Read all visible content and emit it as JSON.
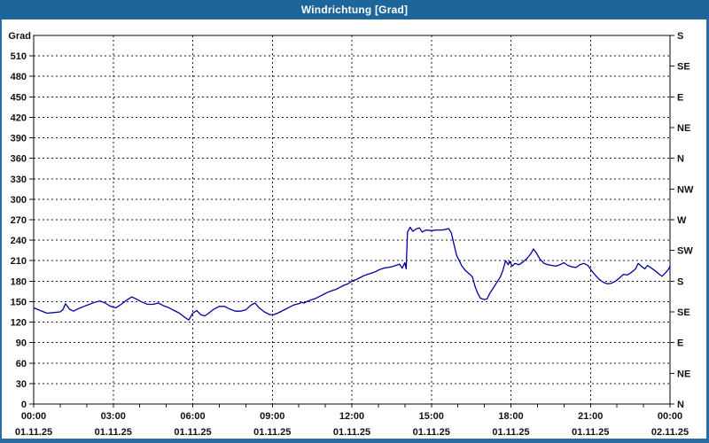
{
  "window": {
    "title": "Windrichtung [Grad]"
  },
  "colors": {
    "titlebar": "#1e659a",
    "frame": "#2a6ca4",
    "line": "#0000a0",
    "grid": "#1a1a1a",
    "plot_background": "#ffffff",
    "text": "#111111"
  },
  "chart_data": {
    "type": "line",
    "title": "Windrichtung [Grad]",
    "ylabel": "Grad",
    "xlabel": "",
    "ylim": [
      0,
      540
    ],
    "xlim_hours": [
      0,
      24
    ],
    "grid": "dashed",
    "legend": "none",
    "y_tick_step": 30,
    "y_tick_values": [
      510,
      480,
      450,
      420,
      390,
      360,
      330,
      300,
      270,
      240,
      210,
      180,
      150,
      120,
      90,
      60,
      30,
      0
    ],
    "y_axis_title": "Grad",
    "right_axis_labels": [
      {
        "value": 540,
        "label": "S"
      },
      {
        "value": 495,
        "label": "SE"
      },
      {
        "value": 450,
        "label": "E"
      },
      {
        "value": 405,
        "label": "NE"
      },
      {
        "value": 360,
        "label": "N"
      },
      {
        "value": 315,
        "label": "NW"
      },
      {
        "value": 270,
        "label": "W"
      },
      {
        "value": 225,
        "label": "SW"
      },
      {
        "value": 180,
        "label": "S"
      },
      {
        "value": 135,
        "label": "SE"
      },
      {
        "value": 90,
        "label": "E"
      },
      {
        "value": 45,
        "label": "NE"
      },
      {
        "value": 0,
        "label": "N"
      }
    ],
    "x_minor_tick_step_hours": 1,
    "x_gridline_step_hours": 3,
    "x_tick_labels": [
      {
        "hour": 0,
        "time": "00:00",
        "date": "01.11.25"
      },
      {
        "hour": 3,
        "time": "03:00",
        "date": "01.11.25"
      },
      {
        "hour": 6,
        "time": "06:00",
        "date": "01.11.25"
      },
      {
        "hour": 9,
        "time": "09:00",
        "date": "01.11.25"
      },
      {
        "hour": 12,
        "time": "12:00",
        "date": "01.11.25"
      },
      {
        "hour": 15,
        "time": "15:00",
        "date": "01.11.25"
      },
      {
        "hour": 18,
        "time": "18:00",
        "date": "01.11.25"
      },
      {
        "hour": 21,
        "time": "21:00",
        "date": "01.11.25"
      },
      {
        "hour": 24,
        "time": "00:00",
        "date": "02.11.25"
      }
    ],
    "series": [
      {
        "name": "Windrichtung",
        "unit": "Grad",
        "points": [
          [
            0,
            141
          ],
          [
            0.25,
            137
          ],
          [
            0.5,
            133
          ],
          [
            0.75,
            134
          ],
          [
            1,
            135
          ],
          [
            1.1,
            138
          ],
          [
            1.2,
            147
          ],
          [
            1.35,
            139
          ],
          [
            1.5,
            136
          ],
          [
            1.7,
            140
          ],
          [
            1.9,
            143
          ],
          [
            2.1,
            146
          ],
          [
            2.3,
            149
          ],
          [
            2.5,
            151
          ],
          [
            2.7,
            148
          ],
          [
            2.9,
            143
          ],
          [
            3.1,
            141
          ],
          [
            3.3,
            146
          ],
          [
            3.5,
            152
          ],
          [
            3.7,
            157
          ],
          [
            3.9,
            153
          ],
          [
            4.1,
            149
          ],
          [
            4.3,
            146
          ],
          [
            4.5,
            146
          ],
          [
            4.7,
            148
          ],
          [
            4.9,
            144
          ],
          [
            5.1,
            141
          ],
          [
            5.3,
            137
          ],
          [
            5.5,
            133
          ],
          [
            5.7,
            127
          ],
          [
            5.85,
            123
          ],
          [
            6,
            133
          ],
          [
            6.15,
            137
          ],
          [
            6.3,
            131
          ],
          [
            6.45,
            129
          ],
          [
            6.6,
            133
          ],
          [
            6.8,
            139
          ],
          [
            7,
            143
          ],
          [
            7.2,
            143
          ],
          [
            7.4,
            139
          ],
          [
            7.6,
            136
          ],
          [
            7.8,
            136
          ],
          [
            8,
            138
          ],
          [
            8.2,
            145
          ],
          [
            8.35,
            148
          ],
          [
            8.5,
            141
          ],
          [
            8.7,
            135
          ],
          [
            8.9,
            131
          ],
          [
            9.05,
            131
          ],
          [
            9.2,
            133
          ],
          [
            9.4,
            137
          ],
          [
            9.6,
            141
          ],
          [
            9.8,
            145
          ],
          [
            10,
            147
          ],
          [
            10.1,
            149
          ],
          [
            10.2,
            148
          ],
          [
            10.35,
            151
          ],
          [
            10.5,
            153
          ],
          [
            10.65,
            155
          ],
          [
            10.8,
            158
          ],
          [
            10.95,
            161
          ],
          [
            11.1,
            164
          ],
          [
            11.25,
            166
          ],
          [
            11.4,
            168
          ],
          [
            11.55,
            171
          ],
          [
            11.7,
            174
          ],
          [
            11.85,
            176
          ],
          [
            12,
            180
          ],
          [
            12.15,
            182
          ],
          [
            12.3,
            185
          ],
          [
            12.45,
            188
          ],
          [
            12.6,
            190
          ],
          [
            12.75,
            192
          ],
          [
            12.9,
            194
          ],
          [
            13.05,
            197
          ],
          [
            13.2,
            199
          ],
          [
            13.35,
            200
          ],
          [
            13.5,
            201
          ],
          [
            13.65,
            203
          ],
          [
            13.8,
            205
          ],
          [
            13.9,
            199
          ],
          [
            14,
            207
          ],
          [
            14.05,
            198
          ],
          [
            14.1,
            252
          ],
          [
            14.2,
            259
          ],
          [
            14.3,
            253
          ],
          [
            14.45,
            257
          ],
          [
            14.55,
            258
          ],
          [
            14.65,
            252
          ],
          [
            14.8,
            255
          ],
          [
            15,
            254
          ],
          [
            15.2,
            255
          ],
          [
            15.4,
            255
          ],
          [
            15.55,
            256
          ],
          [
            15.65,
            257
          ],
          [
            15.75,
            251
          ],
          [
            15.85,
            234
          ],
          [
            15.95,
            218
          ],
          [
            16.05,
            210
          ],
          [
            16.15,
            202
          ],
          [
            16.3,
            195
          ],
          [
            16.45,
            190
          ],
          [
            16.55,
            186
          ],
          [
            16.65,
            172
          ],
          [
            16.75,
            162
          ],
          [
            16.85,
            155
          ],
          [
            17,
            153
          ],
          [
            17.1,
            154
          ],
          [
            17.2,
            162
          ],
          [
            17.3,
            168
          ],
          [
            17.4,
            174
          ],
          [
            17.5,
            180
          ],
          [
            17.6,
            186
          ],
          [
            17.7,
            196
          ],
          [
            17.8,
            210
          ],
          [
            17.9,
            204
          ],
          [
            17.95,
            209
          ],
          [
            18.05,
            202
          ],
          [
            18.15,
            206
          ],
          [
            18.3,
            204
          ],
          [
            18.45,
            208
          ],
          [
            18.6,
            213
          ],
          [
            18.75,
            220
          ],
          [
            18.85,
            227
          ],
          [
            18.95,
            222
          ],
          [
            19.1,
            212
          ],
          [
            19.25,
            206
          ],
          [
            19.4,
            204
          ],
          [
            19.55,
            203
          ],
          [
            19.7,
            202
          ],
          [
            19.85,
            204
          ],
          [
            20,
            207
          ],
          [
            20.15,
            203
          ],
          [
            20.3,
            201
          ],
          [
            20.45,
            200
          ],
          [
            20.6,
            204
          ],
          [
            20.75,
            206
          ],
          [
            20.9,
            203
          ],
          [
            21.05,
            195
          ],
          [
            21.2,
            188
          ],
          [
            21.35,
            182
          ],
          [
            21.5,
            178
          ],
          [
            21.65,
            176
          ],
          [
            21.8,
            177
          ],
          [
            21.95,
            180
          ],
          [
            22.1,
            185
          ],
          [
            22.25,
            190
          ],
          [
            22.4,
            189
          ],
          [
            22.55,
            193
          ],
          [
            22.7,
            198
          ],
          [
            22.8,
            206
          ],
          [
            22.95,
            201
          ],
          [
            23.05,
            198
          ],
          [
            23.15,
            203
          ],
          [
            23.3,
            199
          ],
          [
            23.45,
            195
          ],
          [
            23.6,
            190
          ],
          [
            23.7,
            187
          ],
          [
            23.85,
            193
          ],
          [
            23.95,
            198
          ],
          [
            24,
            202
          ]
        ]
      }
    ]
  }
}
